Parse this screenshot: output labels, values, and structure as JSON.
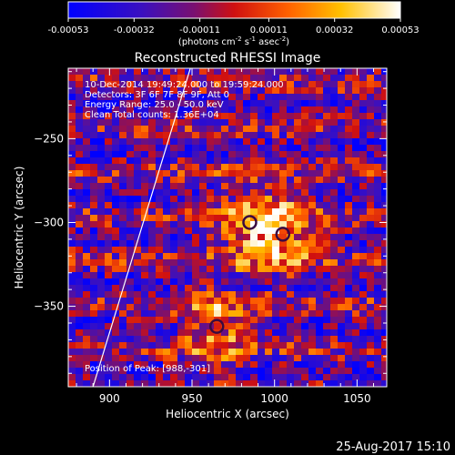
{
  "chart_data": {
    "type": "heatmap",
    "title": "Reconstructed RHESSI Image",
    "xlabel": "Heliocentric X (arcsec)",
    "ylabel": "Heliocentric Y (arcsec)",
    "xlim": [
      875,
      1068
    ],
    "ylim": [
      -398,
      -208
    ],
    "x_ticks": [
      900,
      950,
      1000,
      1050
    ],
    "y_ticks": [
      -250,
      -300,
      -350
    ],
    "colorbar": {
      "range": [
        -0.00053,
        0.00053
      ],
      "tick_labels": [
        "-0.00053",
        "-0.00032",
        "-0.00011",
        "0.00011",
        "0.00032",
        "0.00053"
      ],
      "tick_values": [
        -0.00053,
        -0.00032,
        -0.00011,
        0.00011,
        0.00032,
        0.00053
      ],
      "unit_label_prefix": "(photons cm",
      "unit_sup1": "-2",
      "unit_mid": " s",
      "unit_sup2": "-1",
      "unit_mid2": " asec",
      "unit_sup3": "-2",
      "unit_suffix": ")"
    },
    "annotations": [
      "10-Dec-2014 19:49:24.000 to 19:59:24.000",
      "Detectors: 3F 6F 7F 8F 9F, Att 0",
      "Energy Range: 25.0 - 50.0 keV",
      "Clean    Total counts: 1.36E+04"
    ],
    "peak_label": "Position of Peak: [988,-301]",
    "peak": [
      988,
      -301
    ],
    "sources": [
      {
        "x": 985,
        "y": -300
      },
      {
        "x": 1005,
        "y": -307
      },
      {
        "x": 965,
        "y": -362
      }
    ],
    "limb_line": [
      [
        890,
        -398
      ],
      [
        949,
        -208
      ]
    ]
  },
  "footer_timestamp": "25-Aug-2017 15:10"
}
